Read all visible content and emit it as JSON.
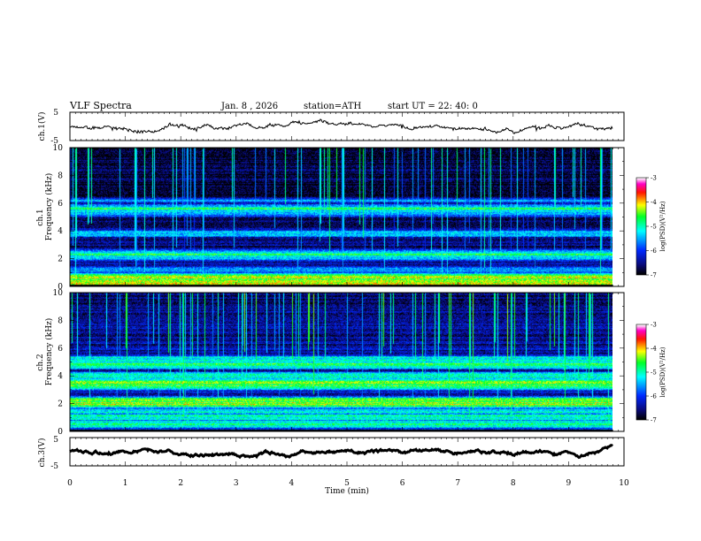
{
  "header": {
    "title": "VLF  Spectra",
    "date": "Jan.  8   , 2026",
    "station": "station=ATH",
    "start_time": "start  UT  =   22: 40: 0"
  },
  "chart_data": [
    {
      "type": "line",
      "name": "ch1-waveform",
      "ylabel": "ch.1(V)",
      "ylim": [
        -5,
        5
      ],
      "ytick_labels": [
        "5",
        "-5"
      ],
      "xlim": [
        0,
        10
      ],
      "trace_center": 0.0,
      "trace_jitter": 0.7,
      "trace_end": 9.8
    },
    {
      "type": "heatmap",
      "name": "ch1-spectrogram",
      "ylabel": "Frequency  (kHz)",
      "channel_label": "ch.1",
      "ylim": [
        0,
        10
      ],
      "ytick_labels": [
        "0",
        "2",
        "4",
        "6",
        "8",
        "10"
      ],
      "xlim": [
        0,
        9.8
      ],
      "colorbar": {
        "label": "log(PSD)(V²/Hz)",
        "range": [
          -7,
          -3
        ],
        "tick_labels": [
          "-3",
          "-4",
          "-5",
          "-6",
          "-7"
        ]
      },
      "noise_floor_log_psd": -6.4,
      "bands": [
        {
          "f": 0.3,
          "psd": -4.0
        },
        {
          "f": 0.6,
          "psd": -4.4
        },
        {
          "f": 1.2,
          "psd": -5.5
        },
        {
          "f": 2.1,
          "psd": -5.2
        },
        {
          "f": 2.3,
          "psd": -4.9
        },
        {
          "f": 3.8,
          "psd": -5.4
        },
        {
          "f": 5.2,
          "psd": -5.6
        },
        {
          "f": 5.6,
          "psd": -4.9
        },
        {
          "f": 6.2,
          "psd": -5.7
        }
      ]
    },
    {
      "type": "heatmap",
      "name": "ch2-spectrogram",
      "ylabel": "Frequency  (kHz)",
      "channel_label": "ch.2",
      "ylim": [
        0,
        10
      ],
      "ytick_labels": [
        "0",
        "2",
        "4",
        "6",
        "8",
        "10"
      ],
      "xlim": [
        0,
        9.8
      ],
      "colorbar": {
        "label": "log(PSD)(V²/Hz)",
        "range": [
          -7,
          -3
        ],
        "tick_labels": [
          "-3",
          "-4",
          "-5",
          "-6",
          "-7"
        ]
      },
      "noise_floor_log_psd": -6.1,
      "bands": [
        {
          "f": 0.5,
          "psd": -4.8
        },
        {
          "f": 1.0,
          "psd": -5.0
        },
        {
          "f": 1.4,
          "psd": -5.1
        },
        {
          "f": 2.0,
          "psd": -4.3
        },
        {
          "f": 2.2,
          "psd": -4.6
        },
        {
          "f": 3.3,
          "psd": -4.7
        },
        {
          "f": 3.5,
          "psd": -4.4
        },
        {
          "f": 4.0,
          "psd": -5.0
        },
        {
          "f": 4.8,
          "psd": -4.8
        },
        {
          "f": 5.2,
          "psd": -5.1
        }
      ]
    },
    {
      "type": "line",
      "name": "ch3-waveform",
      "ylabel": "ch.3(V)",
      "ylim": [
        -5,
        5
      ],
      "ytick_labels": [
        "5",
        "-5"
      ],
      "xlim": [
        0,
        10
      ],
      "trace_center": 0.0,
      "trace_jitter": 0.25,
      "trace_end": 9.8
    }
  ],
  "x_axis": {
    "label": "Time  (min)",
    "range": [
      0,
      10
    ],
    "tick_labels": [
      "0",
      "1",
      "2",
      "3",
      "4",
      "5",
      "6",
      "7",
      "8",
      "9",
      "10"
    ]
  },
  "colors": {
    "axes": "#000000",
    "trace": "#000000"
  }
}
